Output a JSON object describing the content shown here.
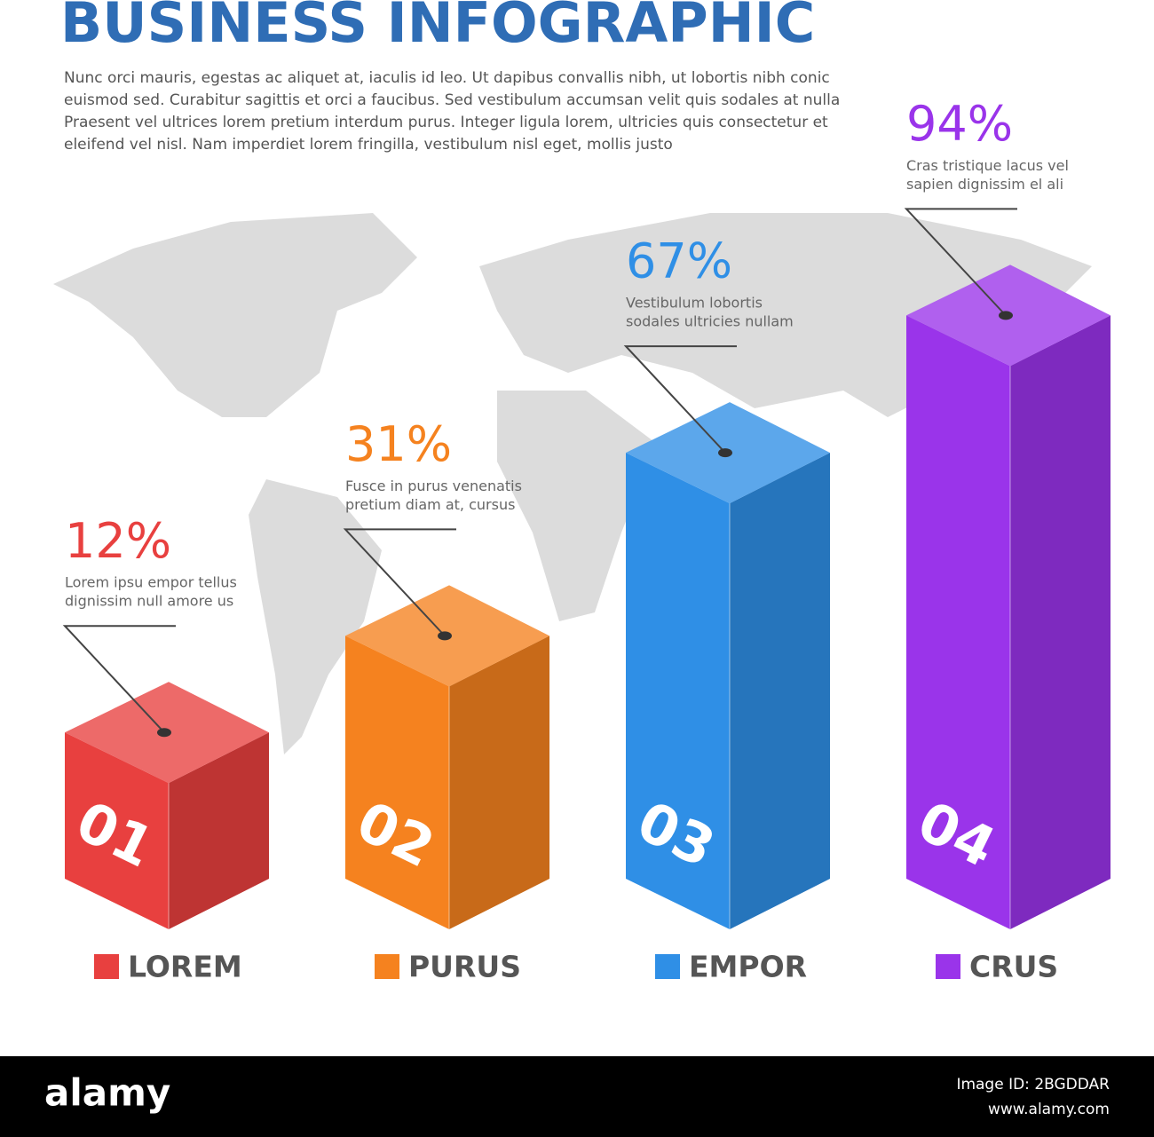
{
  "chart_data": {
    "type": "bar3d",
    "title": "BUSINESS INFOGRAPHIC",
    "subtitle": [
      "Nunc orci mauris, egestas ac aliquet at, iaculis id leo. Ut dapibus convallis nibh, ut lobortis nibh conic",
      "euismod sed. Curabitur sagittis et orci a faucibus. Sed vestibulum accumsan velit quis sodales at nulla",
      "Praesent vel ultrices lorem pretium interdum purus. Integer ligula lorem, ultricies quis consectetur et",
      "eleifend vel nisl. Nam imperdiet lorem fringilla, vestibulum nisl eget, mollis justo"
    ],
    "categories": [
      "LOREM",
      "PURUS",
      "EMPOR",
      "CRUS"
    ],
    "numbers": [
      "01",
      "02",
      "03",
      "04"
    ],
    "values": [
      12,
      31,
      67,
      94
    ],
    "value_labels": [
      "12%",
      "31%",
      "67%",
      "94%"
    ],
    "descriptions": [
      [
        "Lorem ipsu empor tellus",
        "dignissim null amore us"
      ],
      [
        "Fusce in purus venenatis",
        "pretium diam at, cursus"
      ],
      [
        "Vestibulum lobortis",
        "sodales ultricies nullam"
      ],
      [
        "Cras tristique lacus vel",
        "sapien dignissim el ali"
      ]
    ],
    "colors": [
      "#e8403f",
      "#f5821f",
      "#2f8fe6",
      "#9a34ea"
    ]
  },
  "footer": {
    "brand": "alamy",
    "image_id": "Image ID: 2BGDDAR",
    "url": "www.alamy.com"
  }
}
